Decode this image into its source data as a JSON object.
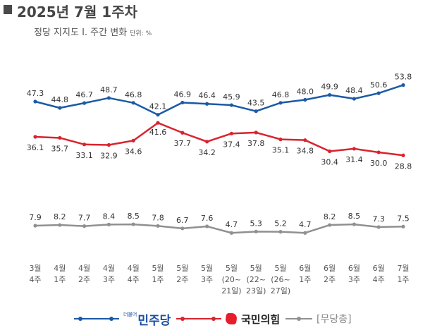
{
  "header": {
    "title": "2025년 7월 1주차",
    "subtitle": "정당 지지도 Ⅰ. 주간 변화",
    "unit": "단위: %"
  },
  "legend": {
    "democratic": "민주당",
    "democratic_small": "더불어",
    "ppp": "국민의힘",
    "none": "[무당층]"
  },
  "colors": {
    "democratic": "#1b5aa6",
    "ppp": "#d8242e",
    "none": "#909090",
    "label_text": "#333333"
  },
  "chart_data": {
    "type": "line",
    "categories": [
      [
        "3월",
        "4주"
      ],
      [
        "4월",
        "1주"
      ],
      [
        "4월",
        "2주"
      ],
      [
        "4월",
        "3주"
      ],
      [
        "4월",
        "4주"
      ],
      [
        "5월",
        "1주"
      ],
      [
        "5월",
        "2주"
      ],
      [
        "5월",
        "3주"
      ],
      [
        "5월",
        "(20~",
        "21일)"
      ],
      [
        "5월",
        "(22~",
        "23일)"
      ],
      [
        "5월",
        "(26~",
        "27일)"
      ],
      [
        "6월",
        "1주"
      ],
      [
        "6월",
        "2주"
      ],
      [
        "6월",
        "3주"
      ],
      [
        "6월",
        "4주"
      ],
      [
        "7월",
        "1주"
      ]
    ],
    "series": [
      {
        "name": "민주당",
        "values": [
          47.3,
          44.8,
          46.7,
          48.7,
          46.8,
          42.1,
          46.9,
          46.4,
          45.9,
          43.5,
          46.8,
          48.0,
          49.9,
          48.4,
          50.6,
          53.8
        ],
        "labels": [
          "47.3",
          "44.8",
          "46.7",
          "48.7",
          "46.8",
          "42.1",
          "46.9",
          "46.4",
          "45.9",
          "43.5",
          "46.8",
          "48.0",
          "49.9",
          "48.4",
          "50.6",
          "53.8"
        ]
      },
      {
        "name": "국민의힘",
        "values": [
          36.1,
          35.7,
          33.1,
          32.9,
          34.6,
          41.6,
          37.7,
          34.2,
          37.4,
          37.8,
          35.1,
          34.8,
          30.4,
          31.4,
          30.0,
          28.8
        ],
        "labels": [
          "36.1",
          "35.7",
          "33.1",
          "32.9",
          "34.6",
          "41.6",
          "37.7",
          "34.2",
          "37.4",
          "37.8",
          "35.1",
          "34.8",
          "30.4",
          "31.4",
          "30.0",
          "28.8"
        ]
      },
      {
        "name": "무당층",
        "values": [
          7.9,
          8.2,
          7.7,
          8.4,
          8.5,
          7.8,
          6.7,
          7.6,
          4.7,
          5.3,
          5.2,
          4.7,
          8.2,
          8.5,
          7.3,
          7.5
        ],
        "labels": [
          "7.9",
          "8.2",
          "7.7",
          "8.4",
          "8.5",
          "7.8",
          "6.7",
          "7.6",
          "4.7",
          "5.3",
          "5.2",
          "4.7",
          "8.2",
          "8.5",
          "7.3",
          "7.5"
        ]
      }
    ],
    "title": "정당 지지도 Ⅰ. 주간 변화",
    "xlabel": "",
    "ylabel": "단위: %"
  }
}
